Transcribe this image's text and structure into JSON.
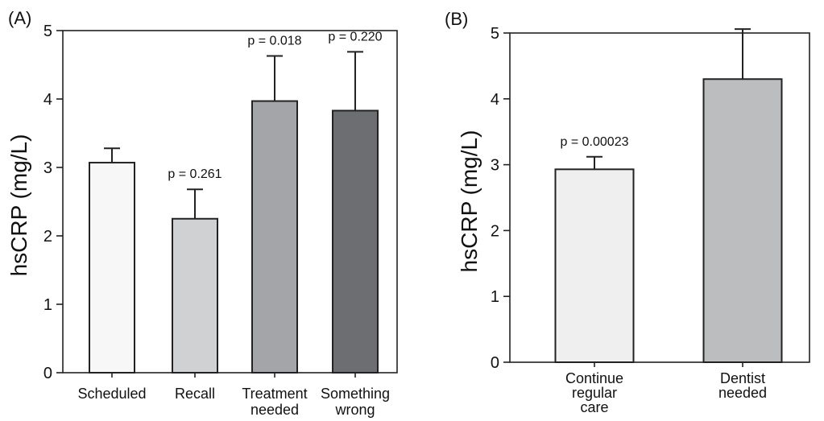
{
  "chart_data": [
    {
      "type": "bar",
      "panel_label": "(A)",
      "categories": [
        [
          "Scheduled"
        ],
        [
          "Recall"
        ],
        [
          "Treatment",
          "needed"
        ],
        [
          "Something",
          "wrong"
        ]
      ],
      "values": [
        3.07,
        2.25,
        3.97,
        3.83
      ],
      "error_upper": [
        3.28,
        2.68,
        4.63,
        4.69
      ],
      "annotations": [
        "",
        "p = 0.261",
        "p = 0.018",
        "p = 0.220"
      ],
      "bar_colors": [
        "#f7f7f7",
        "#d0d1d3",
        "#a4a5a8",
        "#6d6e71"
      ],
      "ylabel": "hsCRP (mg/L)",
      "ylim": [
        0,
        5
      ],
      "yticks": [
        "0",
        "1",
        "2",
        "3",
        "4",
        "5"
      ],
      "grid": false
    },
    {
      "type": "bar",
      "panel_label": "(B)",
      "categories": [
        [
          "Continue",
          "regular",
          "care"
        ],
        [
          "Dentist",
          "needed"
        ]
      ],
      "values": [
        2.93,
        4.3
      ],
      "error_upper": [
        3.12,
        5.06
      ],
      "annotations": [
        "p = 0.00023",
        ""
      ],
      "bar_colors": [
        "#efeff0",
        "#bcbdbf"
      ],
      "ylabel": "hsCRP (mg/L)",
      "ylim": [
        0,
        5
      ],
      "yticks": [
        "0",
        "1",
        "2",
        "3",
        "4",
        "5"
      ],
      "grid": false
    }
  ]
}
